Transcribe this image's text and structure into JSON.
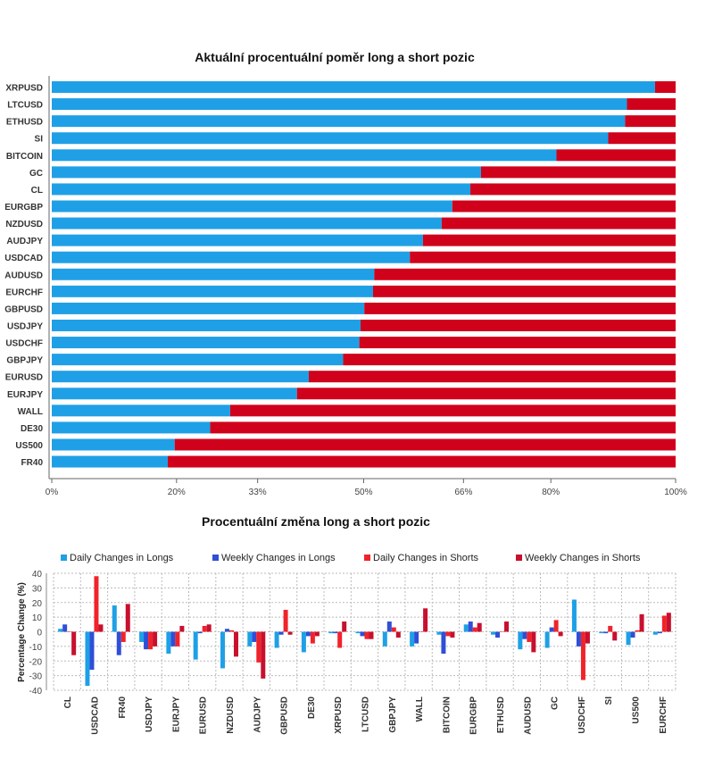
{
  "colors": {
    "long": "#1fa0e6",
    "short": "#d0021b",
    "daily_longs": "#1fa0e6",
    "weekly_longs": "#2f4fd6",
    "daily_shorts": "#f0232b",
    "weekly_shorts": "#c8102e",
    "grid": "#bbbbbb"
  },
  "chart_data": [
    {
      "type": "bar",
      "orientation": "horizontal",
      "stacked": true,
      "title": "Aktuální procentuální poměr long a short pozic",
      "categories": [
        "XRPUSD",
        "LTCUSD",
        "ETHUSD",
        "SI",
        "BITCOIN",
        "GC",
        "CL",
        "EURGBP",
        "NZDUSD",
        "AUDJPY",
        "USDCAD",
        "AUDUSD",
        "EURCHF",
        "GBPUSD",
        "USDJPY",
        "USDCHF",
        "GBPJPY",
        "EURUSD",
        "EURJPY",
        "WALL",
        "DE30",
        "US500",
        "FR40"
      ],
      "series": [
        {
          "key": "long",
          "values": [
            96.7,
            92.2,
            91.9,
            89.2,
            80.9,
            68.8,
            67.1,
            64.2,
            62.5,
            59.5,
            57.4,
            51.7,
            51.5,
            50.1,
            49.5,
            49.3,
            46.7,
            41.2,
            39.3,
            28.6,
            25.4,
            19.7,
            18.6
          ]
        },
        {
          "key": "short",
          "values": [
            3.3,
            7.8,
            8.1,
            10.8,
            19.1,
            31.2,
            32.9,
            35.8,
            37.5,
            40.5,
            42.6,
            48.3,
            48.5,
            49.9,
            50.5,
            50.7,
            53.3,
            58.8,
            60.7,
            71.4,
            74.6,
            80.3,
            81.4
          ]
        }
      ],
      "xlim": [
        0,
        100
      ],
      "x_ticks": [
        0,
        20,
        33,
        50,
        66,
        80,
        100
      ],
      "x_tick_labels": [
        "0%",
        "20%",
        "33%",
        "50%",
        "66%",
        "80%",
        "100%"
      ],
      "grid": false
    },
    {
      "type": "bar",
      "orientation": "vertical",
      "title": "Procentuální změna long a short pozic",
      "ylabel": "Percentage Change (%)",
      "categories": [
        "CL",
        "USDCAD",
        "FR40",
        "USDJPY",
        "EURJPY",
        "EURUSD",
        "NZDUSD",
        "AUDJPY",
        "GBPUSD",
        "DE30",
        "XRPUSD",
        "LTCUSD",
        "GBPJPY",
        "WALL",
        "BITCOIN",
        "EURGBP",
        "ETHUSD",
        "AUDUSD",
        "GC",
        "USDCHF",
        "SI",
        "US500",
        "EURCHF"
      ],
      "series": [
        {
          "name": "Daily Changes in Longs",
          "key": "daily_longs",
          "values": [
            2,
            -37,
            18,
            -7,
            -15,
            -19,
            -25,
            -10,
            -11,
            -14,
            -1,
            -1,
            -10,
            -10,
            -2,
            5,
            -2,
            -12,
            -11,
            22,
            -1,
            -9,
            -2
          ]
        },
        {
          "name": "Weekly Changes in Longs",
          "key": "weekly_longs",
          "values": [
            5,
            -26,
            -16,
            -12,
            -10,
            -1,
            2,
            -7,
            -2,
            -3,
            -1,
            -3,
            7,
            -8,
            -15,
            7,
            -4,
            -5,
            3,
            -10,
            -1,
            -4,
            -1
          ]
        },
        {
          "name": "Daily Changes in Shorts",
          "key": "daily_shorts",
          "values": [
            0,
            38,
            -7,
            -12,
            -10,
            4,
            1,
            -21,
            15,
            -8,
            -11,
            -5,
            3,
            0,
            -3,
            3,
            0,
            -7,
            8,
            -33,
            4,
            1,
            11
          ]
        },
        {
          "name": "Weekly Changes in Shorts",
          "key": "weekly_shorts",
          "values": [
            -16,
            5,
            19,
            -10,
            4,
            5,
            -17,
            -32,
            -2,
            -3,
            7,
            -5,
            -4,
            16,
            -4,
            6,
            7,
            -14,
            -3,
            -8,
            -6,
            12,
            13
          ]
        }
      ],
      "ylim": [
        -40,
        40
      ],
      "y_ticks": [
        -40,
        -30,
        -20,
        -10,
        0,
        10,
        20,
        30,
        40
      ],
      "grid": true,
      "legend_placement": "top"
    }
  ]
}
